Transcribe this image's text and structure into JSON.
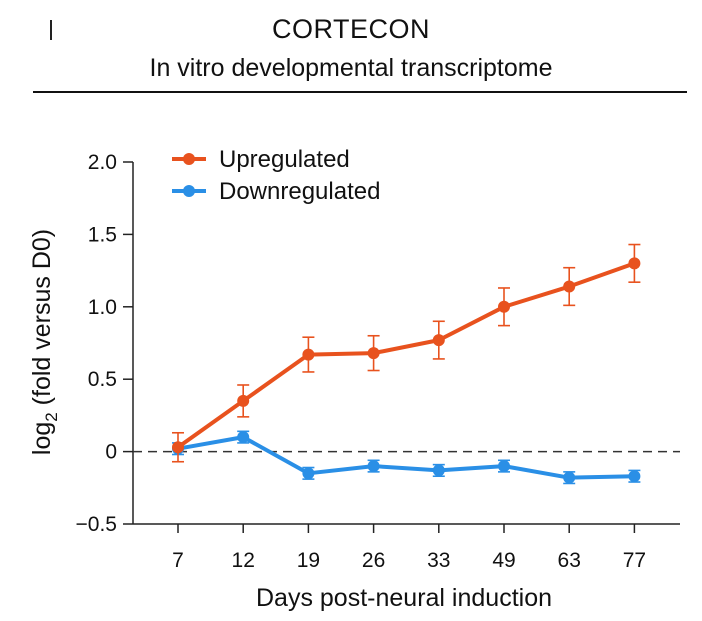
{
  "header": {
    "title": "CORTECON",
    "subtitle": "In vitro developmental transcriptome"
  },
  "chart_data": {
    "type": "line",
    "title": "CORTECON",
    "subtitle": "In vitro developmental transcriptome",
    "xlabel": "Days post-neural induction",
    "ylabel_main": "log",
    "ylabel_sub": "2",
    "ylabel_rest": " (fold versus D0)",
    "categories": [
      "7",
      "12",
      "19",
      "26",
      "33",
      "49",
      "63",
      "77"
    ],
    "yticks": [
      2.0,
      1.5,
      1.0,
      0.5,
      0,
      -0.5
    ],
    "ytick_labels": [
      "2.0",
      "1.5",
      "1.0",
      "0.5",
      "0",
      "−0.5"
    ],
    "ylim": [
      -0.5,
      2.0
    ],
    "reference_line": 0,
    "legend_position": "top-left",
    "series": [
      {
        "name": "Upregulated",
        "color": "#e8521e",
        "values": [
          0.03,
          0.35,
          0.67,
          0.68,
          0.77,
          1.0,
          1.14,
          1.3
        ],
        "errors": [
          0.1,
          0.11,
          0.12,
          0.12,
          0.13,
          0.13,
          0.13,
          0.13
        ]
      },
      {
        "name": "Downregulated",
        "color": "#2a8fe6",
        "values": [
          0.02,
          0.1,
          -0.15,
          -0.1,
          -0.13,
          -0.1,
          -0.18,
          -0.17
        ],
        "errors": [
          0.04,
          0.04,
          0.04,
          0.04,
          0.04,
          0.04,
          0.04,
          0.04
        ]
      }
    ]
  }
}
